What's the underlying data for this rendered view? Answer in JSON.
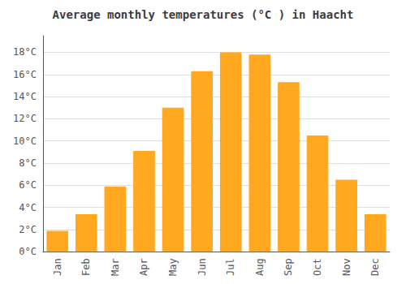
{
  "chart_data": {
    "type": "bar",
    "title": "Average monthly temperatures (°C ) in Haacht",
    "categories": [
      "Jan",
      "Feb",
      "Mar",
      "Apr",
      "May",
      "Jun",
      "Jul",
      "Aug",
      "Sep",
      "Oct",
      "Nov",
      "Dec"
    ],
    "values": [
      1.9,
      3.4,
      5.9,
      9.1,
      13.0,
      16.3,
      18.0,
      17.8,
      15.3,
      10.5,
      6.5,
      3.4
    ],
    "color": "#FFA820",
    "ylim": [
      0,
      19.5
    ],
    "yticks": [
      {
        "value": 0,
        "label": "0°C"
      },
      {
        "value": 2,
        "label": "2°C"
      },
      {
        "value": 4,
        "label": "4°C"
      },
      {
        "value": 6,
        "label": "6°C"
      },
      {
        "value": 8,
        "label": "8°C"
      },
      {
        "value": 10,
        "label": "10°C"
      },
      {
        "value": 12,
        "label": "12°C"
      },
      {
        "value": 14,
        "label": "14°C"
      },
      {
        "value": 16,
        "label": "16°C"
      },
      {
        "value": 18,
        "label": "18°C"
      }
    ],
    "grid": true
  }
}
